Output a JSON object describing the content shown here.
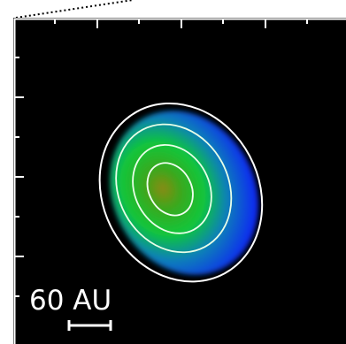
{
  "scale_bar": {
    "label": "60 AU"
  }
}
